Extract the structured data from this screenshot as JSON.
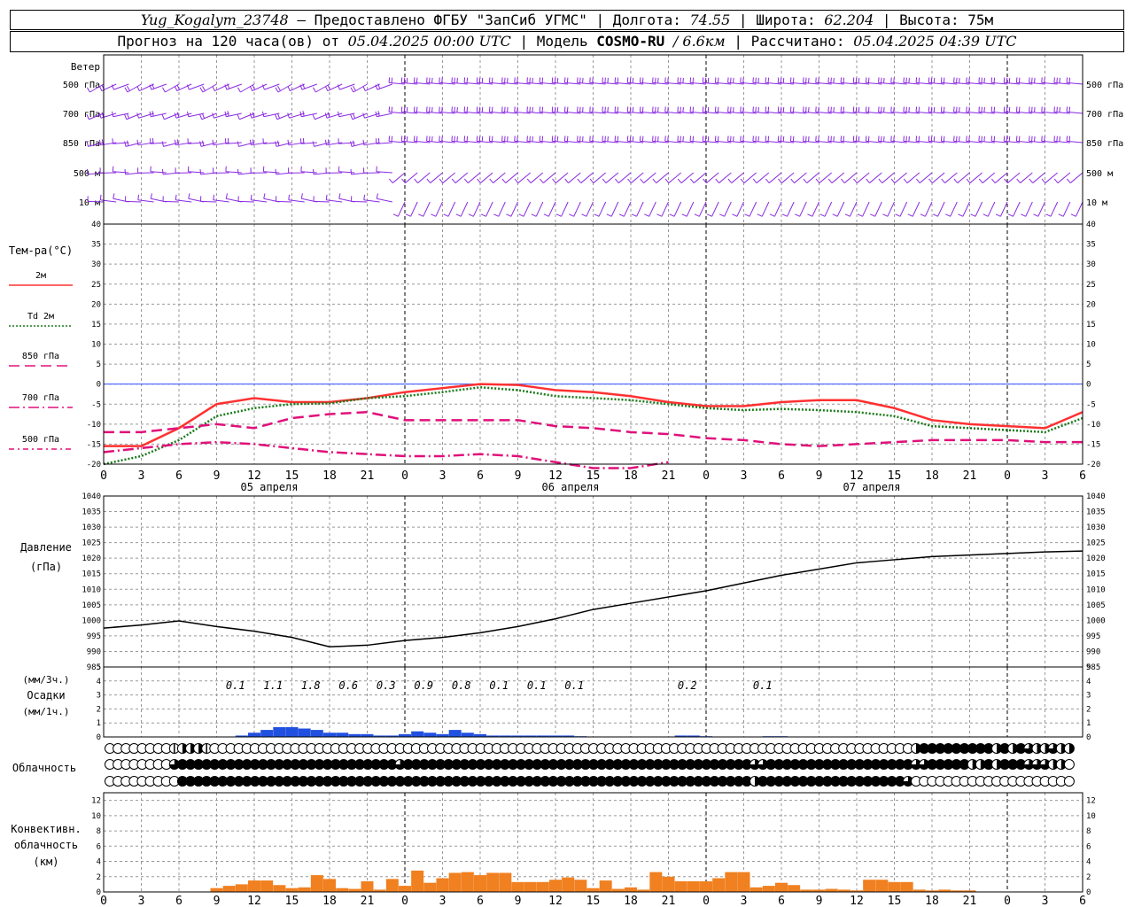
{
  "header": {
    "station": "Yug_Kogalym_23748",
    "provider": "— Предоставлено ФГБУ \"ЗапСиб УГМС\"",
    "lon_label": "Долгота:",
    "lon": "74.55",
    "lat_label": "Широта:",
    "lat": "62.204",
    "alt_label": "Высота:",
    "alt": "75м",
    "forecast_label": "Прогноз на 120 часа(ов) от",
    "forecast_start": "05.04.2025 00:00 UTC",
    "model_label": "Модель",
    "model": "COSMO-RU",
    "resolution": "/ 6.6км",
    "calc_label": "Рассчитано:",
    "calc_time": "05.04.2025 04:39 UTC"
  },
  "time_ticks": [
    "0",
    "3",
    "6",
    "9",
    "12",
    "15",
    "18",
    "21",
    "0",
    "3",
    "6",
    "9",
    "12",
    "15",
    "18",
    "21",
    "0",
    "3",
    "6",
    "9",
    "12",
    "15",
    "18",
    "21",
    "0",
    "3",
    "6"
  ],
  "date_labels": [
    "05 апреля",
    "06 апреля",
    "07 апреля"
  ],
  "wind": {
    "title": "Ветер",
    "levels": [
      "500 гПа",
      "700 гПа",
      "850 гПа",
      "500 м",
      "10  м"
    ],
    "color": "#8a2be2"
  },
  "chart_data": [
    {
      "type": "line",
      "name": "temperature",
      "ylabel": "Тем-ра(°C)",
      "ylim": [
        -20,
        40
      ],
      "yticks": [
        40,
        35,
        30,
        25,
        20,
        15,
        10,
        5,
        0,
        -5,
        -10,
        -15,
        -20
      ],
      "x_hours": [
        0,
        3,
        6,
        9,
        12,
        15,
        18,
        21,
        24,
        27,
        30,
        33,
        36,
        39,
        42,
        45,
        48,
        51,
        54,
        57,
        60,
        63,
        66,
        69,
        72,
        75,
        78
      ],
      "series": [
        {
          "name": "2м",
          "color": "#ff3030",
          "style": "solid",
          "values": [
            -15.5,
            -15.5,
            -11,
            -5,
            -3.5,
            -4.5,
            -4.5,
            -3.5,
            -2,
            -1,
            0,
            -0.2,
            -1.5,
            -2,
            -3,
            -4.5,
            -5.5,
            -5.5,
            -4.5,
            -4,
            -4,
            -6,
            -9,
            -10,
            -10.5,
            -11,
            -7
          ]
        },
        {
          "name": "Td  2м",
          "color": "#1a7a1a",
          "style": "dotted",
          "values": [
            -20,
            -18,
            -14,
            -8,
            -6,
            -5,
            -4.8,
            -3.5,
            -3,
            -2,
            -0.8,
            -1.5,
            -3,
            -3.5,
            -4,
            -5,
            -6,
            -6.5,
            -6.2,
            -6.5,
            -7,
            -8,
            -10.5,
            -11,
            -11.5,
            -12,
            -8.5
          ]
        },
        {
          "name": "850 гПа",
          "color": "#e0107a",
          "style": "dash",
          "values": [
            -12,
            -12,
            -11,
            -10,
            -11,
            -8.5,
            -7.5,
            -7,
            -9,
            -9,
            -9,
            -9,
            -10.5,
            -11,
            -12,
            -12.5,
            -13.5,
            -14,
            -15,
            -15.5,
            -15,
            -14.5,
            -14,
            -14,
            -14,
            -14.5,
            -14.5
          ]
        },
        {
          "name": "700 гПа",
          "color": "#e0107a",
          "style": "dashdot",
          "values": [
            -17,
            -16,
            -15,
            -14.5,
            -15,
            -16,
            -17,
            -17.5,
            -18,
            -18,
            -17.5,
            -18,
            -19.5,
            -21,
            -21,
            -19.5
          ]
        },
        {
          "name": "500 гПа",
          "color": "#e0107a",
          "style": "dashdot2",
          "values": []
        }
      ]
    },
    {
      "type": "line",
      "name": "pressure",
      "ylabel": "Давление",
      "yunit": "(гПа)",
      "ylim": [
        985,
        1040
      ],
      "yticks": [
        1040,
        1035,
        1030,
        1025,
        1020,
        1015,
        1010,
        1005,
        1000,
        995,
        990,
        985
      ],
      "x_hours": [
        0,
        3,
        6,
        9,
        12,
        15,
        18,
        21,
        24,
        27,
        30,
        33,
        36,
        39,
        42,
        45,
        48,
        51,
        54,
        57,
        60,
        63,
        66,
        69,
        72,
        75,
        78
      ],
      "values": [
        997.5,
        998.5,
        999.8,
        998,
        996.5,
        994.5,
        991.5,
        992,
        993.5,
        994.5,
        996,
        998,
        1000.5,
        1003.5,
        1005.5,
        1007.5,
        1009.5,
        1012,
        1014.5,
        1016.5,
        1018.5,
        1019.5,
        1020.5,
        1021,
        1021.5,
        1022,
        1022.3
      ]
    },
    {
      "type": "bar",
      "name": "precipitation",
      "ylabel": "Осадки",
      "yunit_top": "(мм/3ч.)",
      "yunit_bottom": "(мм/1ч.)",
      "ylim": [
        0,
        5
      ],
      "yticks": [
        5,
        4,
        3,
        2,
        1,
        0
      ],
      "x_hours": [
        9,
        12,
        15,
        18,
        21,
        24,
        27,
        30,
        33,
        36,
        39,
        51,
        57
      ],
      "labels": [
        "0.1",
        "1.1",
        "1.8",
        "0.6",
        "0.3",
        "0.9",
        "0.8",
        "0.1",
        "0.1",
        "0.1",
        "0.2",
        "0.1"
      ],
      "label_hours": [
        10.5,
        13.5,
        16.5,
        19.5,
        22.5,
        25.5,
        28.5,
        31.5,
        34.5,
        37.5,
        46.5,
        52.5
      ],
      "bar_hours": [
        11,
        12,
        13,
        14,
        15,
        16,
        17,
        18,
        19,
        20,
        21,
        22,
        23,
        24,
        25,
        26,
        27,
        28,
        29,
        30,
        31,
        32,
        33,
        34,
        35,
        36,
        37,
        38,
        46,
        47,
        48,
        53,
        54
      ],
      "bar_values": [
        0.1,
        0.3,
        0.5,
        0.7,
        0.7,
        0.6,
        0.5,
        0.3,
        0.3,
        0.2,
        0.2,
        0.1,
        0.1,
        0.2,
        0.4,
        0.3,
        0.2,
        0.5,
        0.3,
        0.2,
        0.1,
        0.1,
        0.1,
        0.1,
        0.1,
        0.1,
        0.1,
        0.05,
        0.1,
        0.1,
        0.05,
        0.05,
        0.05
      ],
      "color": "#2050e0"
    },
    {
      "type": "table",
      "name": "cloudiness",
      "ylabel": "Облачность",
      "legend": "0 = clear, 1 = quarter, 2 = half, 3 = three-quarter, 4 = overcast",
      "rows": [
        [
          0,
          0,
          0,
          0,
          0,
          0,
          0,
          0,
          1,
          2,
          2,
          2,
          1,
          0,
          0,
          0,
          0,
          0,
          0,
          0,
          0,
          0,
          0,
          0,
          0,
          0,
          0,
          0,
          0,
          0,
          0,
          0,
          0,
          0,
          0,
          0,
          0,
          0,
          0,
          0,
          0,
          0,
          0,
          0,
          0,
          0,
          0,
          0,
          0,
          0,
          0,
          0,
          0,
          0,
          0,
          0,
          0,
          0,
          0,
          0,
          0,
          0,
          0,
          0,
          0,
          0,
          0,
          0,
          0,
          0,
          0,
          0,
          0,
          0,
          0,
          0,
          0,
          0,
          0,
          0,
          0,
          0,
          0,
          0,
          0,
          0,
          0,
          0,
          0,
          0,
          0,
          0,
          0,
          0,
          0,
          0,
          0,
          0,
          0,
          0,
          2,
          4,
          4,
          4,
          4,
          4,
          4,
          4,
          4,
          4,
          2,
          4,
          2,
          4,
          3,
          2,
          2,
          3,
          2,
          2
        ],
        [
          0,
          0,
          0,
          0,
          0,
          0,
          0,
          0,
          3,
          4,
          4,
          4,
          4,
          4,
          4,
          4,
          4,
          4,
          4,
          4,
          4,
          4,
          4,
          4,
          4,
          4,
          4,
          4,
          4,
          4,
          4,
          4,
          4,
          4,
          4,
          4,
          3,
          4,
          4,
          4,
          4,
          4,
          4,
          4,
          4,
          4,
          4,
          4,
          4,
          4,
          4,
          4,
          4,
          4,
          4,
          4,
          4,
          4,
          4,
          4,
          4,
          4,
          4,
          4,
          4,
          4,
          4,
          4,
          4,
          4,
          4,
          4,
          4,
          4,
          4,
          4,
          4,
          4,
          4,
          4,
          3,
          3,
          4,
          4,
          4,
          4,
          4,
          4,
          4,
          4,
          4,
          4,
          4,
          4,
          4,
          4,
          4,
          4,
          4,
          4,
          3,
          3,
          4,
          4,
          4,
          4,
          4,
          2,
          2,
          4,
          2,
          4,
          4,
          4,
          3,
          3,
          3,
          2,
          2,
          0
        ],
        [
          0,
          0,
          0,
          0,
          0,
          0,
          0,
          0,
          0,
          4,
          4,
          4,
          4,
          4,
          4,
          4,
          4,
          4,
          4,
          4,
          4,
          4,
          4,
          4,
          4,
          4,
          4,
          4,
          4,
          4,
          4,
          4,
          4,
          4,
          4,
          4,
          4,
          4,
          4,
          4,
          4,
          4,
          4,
          4,
          4,
          4,
          4,
          4,
          4,
          4,
          4,
          4,
          4,
          4,
          4,
          4,
          4,
          4,
          4,
          4,
          4,
          4,
          4,
          4,
          4,
          4,
          4,
          4,
          4,
          4,
          4,
          4,
          4,
          4,
          4,
          4,
          4,
          4,
          4,
          4,
          2,
          4,
          4,
          4,
          4,
          4,
          4,
          4,
          4,
          4,
          4,
          4,
          4,
          4,
          4,
          4,
          4,
          4,
          4,
          3,
          0,
          0,
          0,
          0,
          0,
          0,
          0,
          0,
          0,
          0,
          0,
          0,
          0,
          0,
          0,
          0,
          0,
          0,
          0,
          0
        ]
      ]
    },
    {
      "type": "bar",
      "name": "convective_cloudiness",
      "ylabel": "Конвективн.",
      "ylabel2": "облачность",
      "yunit": "(км)",
      "ylim": [
        0,
        13
      ],
      "yticks": [
        12,
        10,
        8,
        6,
        4,
        2,
        0
      ],
      "bar_hours": [
        9,
        10,
        11,
        12,
        13,
        14,
        15,
        16,
        17,
        18,
        19,
        20,
        21,
        22,
        23,
        24,
        25,
        26,
        27,
        28,
        29,
        30,
        31,
        32,
        33,
        34,
        35,
        36,
        37,
        38,
        39,
        40,
        41,
        42,
        43,
        44,
        45,
        46,
        47,
        48,
        49,
        50,
        51,
        52,
        53,
        54,
        55,
        56,
        57,
        58,
        59,
        60,
        61,
        62,
        63,
        64,
        65,
        66,
        67,
        68,
        69
      ],
      "bar_values": [
        0.5,
        0.8,
        1.0,
        1.5,
        1.5,
        0.9,
        0.5,
        0.6,
        2.2,
        1.7,
        0.5,
        0.4,
        1.4,
        0.3,
        1.7,
        0.8,
        2.8,
        1.2,
        1.8,
        2.5,
        2.6,
        2.2,
        2.5,
        2.5,
        1.3,
        1.3,
        1.3,
        1.6,
        1.9,
        1.6,
        0.5,
        1.5,
        0.4,
        0.6,
        0.3,
        2.6,
        2.0,
        1.4,
        1.4,
        1.4,
        1.8,
        2.6,
        2.6,
        0.6,
        0.8,
        1.2,
        0.9,
        0.3,
        0.3,
        0.4,
        0.3,
        0.2,
        1.6,
        1.6,
        1.3,
        1.3,
        0.3,
        0.2,
        0.3,
        0.2,
        0.2
      ],
      "color": "#f08020"
    }
  ]
}
